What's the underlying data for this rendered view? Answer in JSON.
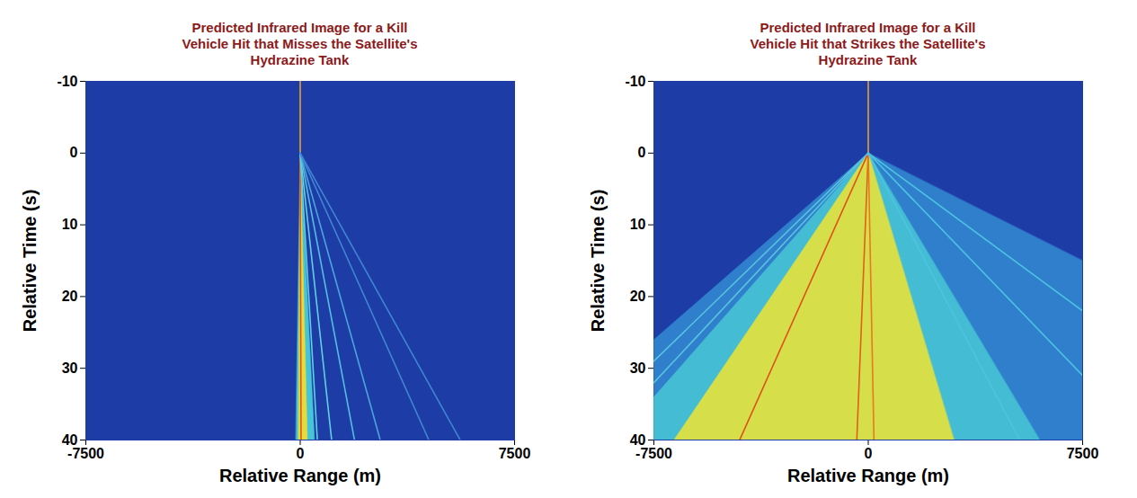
{
  "chart_data": [
    {
      "type": "area",
      "title": "Predicted Infrared Image for a Kill Vehicle Hit that Misses the Satellite's Hydrazine Tank",
      "x_label": "Relative Range (m)",
      "y_label": "Relative Time (s)",
      "xlim": [
        -7500,
        7500
      ],
      "xticks": [
        -7500,
        0,
        7500
      ],
      "ylim": [
        40,
        -10
      ],
      "yticks": [
        -10,
        0,
        10,
        20,
        30,
        40
      ],
      "grid": false,
      "color": "#1d3ca6",
      "regions": [
        {
          "x": [
            0,
            500,
            -150
          ],
          "y": [
            0,
            40,
            40
          ],
          "color": "#46c4d8"
        },
        {
          "x": [
            0,
            250,
            -60
          ],
          "y": [
            0,
            40,
            40
          ],
          "color": "#e4dc3c"
        }
      ],
      "streaks": [
        {
          "x": [
            0,
            0
          ],
          "y": [
            -10,
            0
          ],
          "color": "#e8a030"
        },
        {
          "x": [
            0,
            30
          ],
          "y": [
            0,
            40
          ],
          "color": "#e0561a"
        },
        {
          "x": [
            0,
            600
          ],
          "y": [
            0,
            40
          ],
          "color": "#5fd0e0"
        },
        {
          "x": [
            0,
            1100
          ],
          "y": [
            0,
            40
          ],
          "color": "#5fd0e0"
        },
        {
          "x": [
            0,
            1900
          ],
          "y": [
            0,
            40
          ],
          "color": "#52bfe0"
        },
        {
          "x": [
            0,
            2800
          ],
          "y": [
            0,
            40
          ],
          "color": "#4aa6dc"
        },
        {
          "x": [
            0,
            4500
          ],
          "y": [
            0,
            40
          ],
          "color": "#3f86d2"
        },
        {
          "x": [
            0,
            5600
          ],
          "y": [
            0,
            40
          ],
          "color": "#3f86d2"
        }
      ]
    },
    {
      "type": "area",
      "title": "Predicted Infrared Image for a Kill Vehicle Hit that Strikes the Satellite's Hydrazine Tank",
      "x_label": "Relative Range (m)",
      "y_label": "Relative Time (s)",
      "xlim": [
        -7500,
        7500
      ],
      "xticks": [
        -7500,
        0,
        7500
      ],
      "ylim": [
        40,
        -10
      ],
      "yticks": [
        -10,
        0,
        10,
        20,
        30,
        40
      ],
      "grid": false,
      "color": "#1d3ca6",
      "regions": [
        {
          "x": [
            0,
            -7500,
            -7500,
            7500,
            7500
          ],
          "y": [
            0,
            26,
            40,
            40,
            15
          ],
          "color": "#2f7fcc"
        },
        {
          "x": [
            0,
            -7500,
            -7500,
            6000
          ],
          "y": [
            0,
            34,
            40,
            40
          ],
          "color": "#44bcd4"
        },
        {
          "x": [
            0,
            -6800,
            3000
          ],
          "y": [
            0,
            40,
            40
          ],
          "color": "#d6de4a"
        }
      ],
      "streaks": [
        {
          "x": [
            0,
            0
          ],
          "y": [
            -10,
            0
          ],
          "color": "#e8a030"
        },
        {
          "x": [
            0,
            -4500
          ],
          "y": [
            0,
            40
          ],
          "color": "#e0501a"
        },
        {
          "x": [
            0,
            -400
          ],
          "y": [
            0,
            40
          ],
          "color": "#e0601a"
        },
        {
          "x": [
            0,
            200
          ],
          "y": [
            0,
            40
          ],
          "color": "#e87a20"
        },
        {
          "x": [
            0,
            7500
          ],
          "y": [
            0,
            22
          ],
          "color": "#4cc4e0"
        },
        {
          "x": [
            0,
            7500
          ],
          "y": [
            0,
            31
          ],
          "color": "#4cc4e0"
        },
        {
          "x": [
            0,
            5300
          ],
          "y": [
            0,
            40
          ],
          "color": "#4cc4e0"
        },
        {
          "x": [
            0,
            -7500
          ],
          "y": [
            0,
            29
          ],
          "color": "#58c4dc"
        },
        {
          "x": [
            0,
            -7500
          ],
          "y": [
            0,
            32
          ],
          "color": "#58c4dc"
        }
      ]
    }
  ]
}
